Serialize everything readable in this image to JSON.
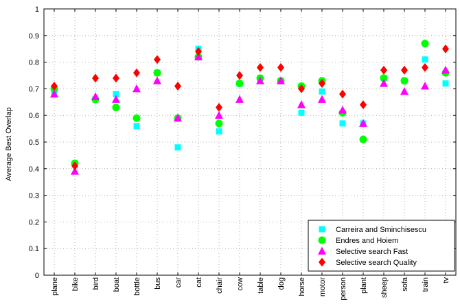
{
  "chart_data": {
    "type": "scatter",
    "title": "",
    "xlabel": "",
    "ylabel": "Average Best Overlap",
    "ylim": [
      0,
      1
    ],
    "yticks": [
      "0",
      "0.1",
      "0.2",
      "0.3",
      "0.4",
      "0.5",
      "0.6",
      "0.7",
      "0.8",
      "0.9",
      "1"
    ],
    "grid": true,
    "legend_position": "bottom-right",
    "categories": [
      "plane",
      "bike",
      "bird",
      "boat",
      "bottle",
      "bus",
      "car",
      "cat",
      "chair",
      "cow",
      "table",
      "dog",
      "horse",
      "motor",
      "person",
      "plant",
      "sheep",
      "sofa",
      "train",
      "tv"
    ],
    "series": [
      {
        "name": "Carreira and Sminchisescu",
        "marker": "square",
        "color": "#00ffff",
        "values": [
          0.69,
          0.42,
          0.66,
          0.68,
          0.56,
          0.76,
          0.48,
          0.85,
          0.54,
          0.72,
          0.74,
          0.73,
          0.61,
          0.69,
          0.57,
          0.57,
          0.74,
          0.73,
          0.81,
          0.72
        ]
      },
      {
        "name": "Endres and Hoiem",
        "marker": "circle",
        "color": "#00ff00",
        "values": [
          0.7,
          0.42,
          0.66,
          0.63,
          0.59,
          0.76,
          0.59,
          0.82,
          0.57,
          0.72,
          0.74,
          0.73,
          0.71,
          0.73,
          0.61,
          0.51,
          0.74,
          0.73,
          0.87,
          0.76
        ]
      },
      {
        "name": "Selective search Fast",
        "marker": "triangle",
        "color": "#ff00ff",
        "values": [
          0.68,
          0.39,
          0.67,
          0.66,
          0.7,
          0.73,
          0.59,
          0.82,
          0.6,
          0.66,
          0.73,
          0.73,
          0.64,
          0.66,
          0.62,
          0.57,
          0.72,
          0.69,
          0.71,
          0.77
        ]
      },
      {
        "name": "Selective search Quality",
        "marker": "diamond",
        "color": "#ff0000",
        "values": [
          0.71,
          0.41,
          0.74,
          0.74,
          0.76,
          0.81,
          0.71,
          0.84,
          0.63,
          0.75,
          0.78,
          0.78,
          0.7,
          0.72,
          0.68,
          0.64,
          0.77,
          0.77,
          0.78,
          0.85
        ]
      }
    ]
  }
}
